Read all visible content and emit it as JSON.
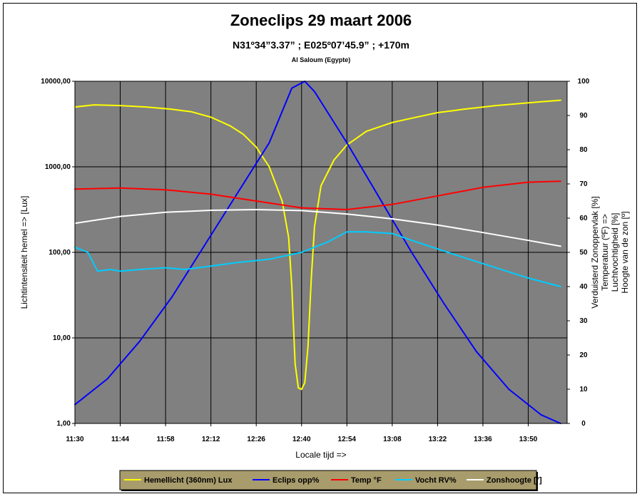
{
  "chart_data": {
    "type": "line",
    "title": "Zoneclips 29 maart 2006",
    "subtitle": "N31º34”3.37” ; E025º07’45.9” ; +170m",
    "subtitle2": "Al Saloum (Egypte)",
    "xlabel": "Locale tijd =>",
    "ylabel_left": "Lichtintensiteit hemel => [Lux]",
    "ylabel_right": [
      "Verduisterd Zonoppervlak [%]",
      "Temperatuur (ºF)      =>",
      "Luchtvochtigheid [%]",
      "Hoogte van de zon [º]"
    ],
    "x_ticks": [
      "11:30",
      "11:44",
      "11:58",
      "12:12",
      "12:26",
      "12:40",
      "12:54",
      "13:08",
      "13:22",
      "13:36",
      "13:50"
    ],
    "x_range": [
      "11:30",
      "14:02"
    ],
    "y_left_ticks": [
      "1,00",
      "10,00",
      "100,00",
      "1000,00",
      "10000,00"
    ],
    "y_left_range": [
      1,
      10000
    ],
    "y_left_scale": "log",
    "y_right_ticks": [
      "0",
      "10",
      "20",
      "30",
      "40",
      "50",
      "60",
      "70",
      "80",
      "90",
      "100"
    ],
    "y_right_range": [
      0,
      100
    ],
    "grid": true,
    "legend_position": "bottom",
    "series": [
      {
        "name": "Hemellicht (360nm) Lux",
        "color": "#ffff00",
        "axis": "left",
        "points": [
          [
            "11:30",
            5000
          ],
          [
            "11:36",
            5300
          ],
          [
            "11:44",
            5200
          ],
          [
            "11:52",
            5000
          ],
          [
            "12:00",
            4700
          ],
          [
            "12:06",
            4400
          ],
          [
            "12:12",
            3800
          ],
          [
            "12:18",
            3000
          ],
          [
            "12:22",
            2400
          ],
          [
            "12:26",
            1700
          ],
          [
            "12:30",
            1000
          ],
          [
            "12:34",
            400
          ],
          [
            "12:36",
            150
          ],
          [
            "12:37",
            40
          ],
          [
            "12:38",
            5
          ],
          [
            "12:39",
            2.6
          ],
          [
            "12:40",
            2.5
          ],
          [
            "12:41",
            3
          ],
          [
            "12:42",
            8
          ],
          [
            "12:43",
            50
          ],
          [
            "12:44",
            200
          ],
          [
            "12:46",
            600
          ],
          [
            "12:50",
            1200
          ],
          [
            "12:54",
            1800
          ],
          [
            "13:00",
            2600
          ],
          [
            "13:08",
            3300
          ],
          [
            "13:14",
            3700
          ],
          [
            "13:22",
            4300
          ],
          [
            "13:30",
            4700
          ],
          [
            "13:40",
            5200
          ],
          [
            "13:50",
            5600
          ],
          [
            "14:00",
            6000
          ]
        ]
      },
      {
        "name": "Eclips opp%",
        "color": "#0000ff",
        "axis": "right",
        "points": [
          [
            "11:30",
            5.5
          ],
          [
            "11:40",
            13
          ],
          [
            "11:50",
            24
          ],
          [
            "12:00",
            37
          ],
          [
            "12:10",
            52
          ],
          [
            "12:20",
            67
          ],
          [
            "12:30",
            82
          ],
          [
            "12:37",
            98
          ],
          [
            "12:41",
            100
          ],
          [
            "12:44",
            97
          ],
          [
            "12:54",
            82
          ],
          [
            "13:04",
            66
          ],
          [
            "13:14",
            50
          ],
          [
            "13:24",
            35
          ],
          [
            "13:34",
            21
          ],
          [
            "13:44",
            10
          ],
          [
            "13:54",
            2.5
          ],
          [
            "14:00",
            0
          ]
        ]
      },
      {
        "name": "Temp °F",
        "color": "#ff0000",
        "axis": "right",
        "points": [
          [
            "11:30",
            68.5
          ],
          [
            "11:44",
            68.8
          ],
          [
            "11:58",
            68.3
          ],
          [
            "12:12",
            67
          ],
          [
            "12:26",
            65
          ],
          [
            "12:40",
            63
          ],
          [
            "12:54",
            62.5
          ],
          [
            "13:08",
            64
          ],
          [
            "13:22",
            66.5
          ],
          [
            "13:36",
            69
          ],
          [
            "13:50",
            70.5
          ],
          [
            "14:00",
            70.8
          ]
        ]
      },
      {
        "name": "Vocht RV%",
        "color": "#00ccff",
        "axis": "right",
        "points": [
          [
            "11:30",
            51.5
          ],
          [
            "11:34",
            50
          ],
          [
            "11:37",
            44.5
          ],
          [
            "11:41",
            45
          ],
          [
            "11:44",
            44.5
          ],
          [
            "11:50",
            45
          ],
          [
            "11:58",
            45.5
          ],
          [
            "12:04",
            45
          ],
          [
            "12:12",
            46
          ],
          [
            "12:20",
            47
          ],
          [
            "12:30",
            48
          ],
          [
            "12:40",
            50
          ],
          [
            "12:48",
            53
          ],
          [
            "12:54",
            56
          ],
          [
            "13:00",
            56
          ],
          [
            "13:08",
            55.5
          ],
          [
            "13:14",
            53.5
          ],
          [
            "13:22",
            51
          ],
          [
            "13:30",
            48.5
          ],
          [
            "13:40",
            45.5
          ],
          [
            "13:50",
            42.5
          ],
          [
            "14:00",
            40
          ]
        ]
      },
      {
        "name": "Zonshoogte [°]",
        "color": "#ffffff",
        "axis": "right",
        "points": [
          [
            "11:30",
            58.5
          ],
          [
            "11:44",
            60.5
          ],
          [
            "11:58",
            61.7
          ],
          [
            "12:12",
            62.3
          ],
          [
            "12:26",
            62.5
          ],
          [
            "12:40",
            62.2
          ],
          [
            "12:54",
            61.2
          ],
          [
            "13:08",
            59.8
          ],
          [
            "13:22",
            58
          ],
          [
            "13:36",
            55.8
          ],
          [
            "13:50",
            53.5
          ],
          [
            "14:00",
            51.8
          ]
        ]
      }
    ]
  }
}
